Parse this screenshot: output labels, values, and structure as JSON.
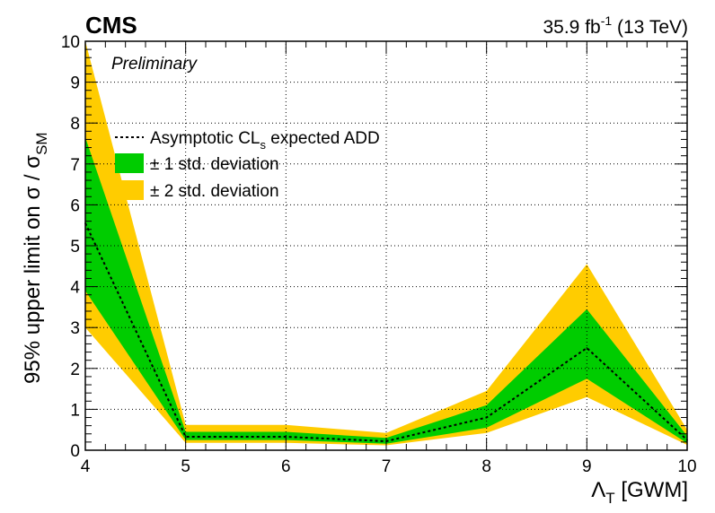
{
  "header": {
    "experiment": "CMS",
    "status": "Preliminary",
    "luminosity_prefix": "35.9 fb",
    "luminosity_exp": "-1",
    "energy": " (13 TeV)"
  },
  "axes": {
    "ylabel_main": "95% upper limit on σ / σ",
    "ylabel_sub": "SM",
    "xlabel_symbol": "Λ",
    "xlabel_sub": "T",
    "xlabel_unit": " [GWM]"
  },
  "legend": {
    "expected_main": "Asymptotic CL",
    "expected_sub": "s",
    "expected_rest": " expected ADD",
    "one_sigma": "± 1 std. deviation",
    "two_sigma": "± 2 std. deviation"
  },
  "colors": {
    "one_sigma": "#00cc00",
    "two_sigma": "#ffcc00",
    "expected": "#000000"
  },
  "chart_data": {
    "type": "line",
    "x": [
      4,
      5,
      6,
      7,
      8,
      9,
      10
    ],
    "expected": [
      5.55,
      0.33,
      0.33,
      0.22,
      0.8,
      2.5,
      0.25
    ],
    "one_sigma_low": [
      3.9,
      0.25,
      0.25,
      0.16,
      0.55,
      1.75,
      0.17
    ],
    "one_sigma_high": [
      7.65,
      0.45,
      0.45,
      0.3,
      1.1,
      3.45,
      0.35
    ],
    "two_sigma_low": [
      3.0,
      0.18,
      0.18,
      0.12,
      0.42,
      1.3,
      0.13
    ],
    "two_sigma_high": [
      10.0,
      0.62,
      0.62,
      0.42,
      1.45,
      4.55,
      0.5
    ],
    "xlim": [
      4,
      10
    ],
    "ylim": [
      0,
      10
    ],
    "xticks": [
      4,
      5,
      6,
      7,
      8,
      9,
      10
    ],
    "yticks": [
      0,
      1,
      2,
      3,
      4,
      5,
      6,
      7,
      8,
      9,
      10
    ],
    "grid": true,
    "legend_position": "top-left"
  }
}
